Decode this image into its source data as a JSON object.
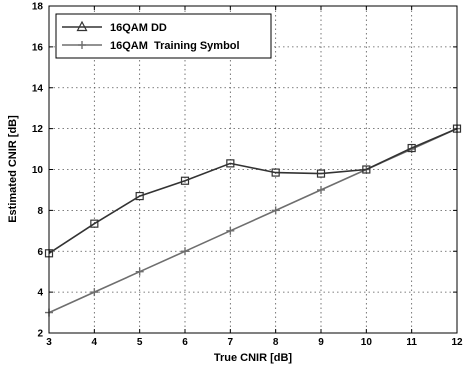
{
  "chart_data": {
    "type": "line",
    "title": "",
    "xlabel": "True CNIR [dB]",
    "ylabel": "Estimated CNIR [dB]",
    "xlim": [
      3,
      12
    ],
    "ylim": [
      2,
      18
    ],
    "x_ticks": [
      3,
      4,
      5,
      6,
      7,
      8,
      9,
      10,
      11,
      12
    ],
    "y_ticks": [
      2,
      4,
      6,
      8,
      10,
      12,
      14,
      16,
      18
    ],
    "grid": true,
    "legend_position": "top-left",
    "x": [
      3,
      4,
      5,
      6,
      7,
      8,
      9,
      10,
      11,
      12
    ],
    "series": [
      {
        "name": "16QAM DD",
        "values": [
          5.9,
          7.35,
          8.7,
          9.45,
          10.3,
          9.85,
          9.8,
          10.0,
          11.05,
          12.0
        ],
        "color": "#333333",
        "marker": "square",
        "legend_marker": "triangle"
      },
      {
        "name": "16QAM  Training Symbol",
        "values": [
          3.0,
          4.0,
          5.0,
          6.0,
          7.0,
          8.0,
          9.0,
          10.0,
          11.0,
          12.0
        ],
        "color": "#6e6e6e",
        "marker": "plus",
        "legend_marker": "plus"
      }
    ]
  }
}
